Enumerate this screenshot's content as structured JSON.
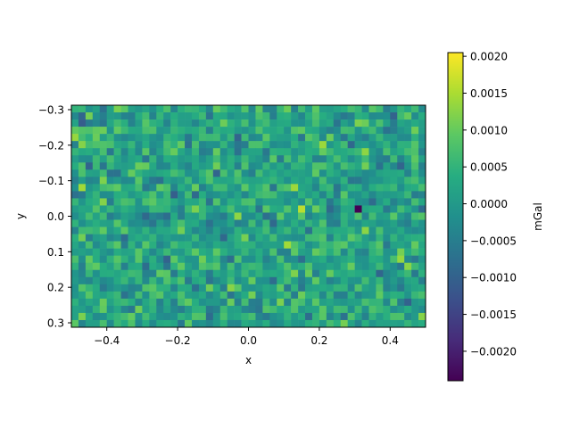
{
  "chart_data": {
    "type": "heatmap",
    "title": "",
    "xlabel": "x",
    "ylabel": "y",
    "xlim": [
      -0.5,
      0.5
    ],
    "ylim": [
      0.3125,
      -0.3125
    ],
    "y_inverted": true,
    "grid": false,
    "x_ticks": [
      -0.4,
      -0.2,
      0.0,
      0.2,
      0.4
    ],
    "x_tick_labels": [
      "−0.4",
      "−0.2",
      "0.0",
      "0.2",
      "0.4"
    ],
    "y_ticks": [
      -0.3,
      -0.2,
      -0.1,
      0.0,
      0.1,
      0.2,
      0.3
    ],
    "y_tick_labels": [
      "−0.3",
      "−0.2",
      "−0.1",
      "0.0",
      "0.1",
      "0.2",
      "0.3"
    ],
    "grid_shape": {
      "cols": 50,
      "rows": 31
    },
    "value_range": [
      -0.0024,
      0.00205
    ],
    "colormap": "viridis",
    "colormap_stops": [
      "#440154",
      "#472c7a",
      "#3b518b",
      "#2c718e",
      "#21908d",
      "#27ad81",
      "#5cc863",
      "#aadc32",
      "#fde725"
    ],
    "notable_cells": [
      {
        "x": 0.31,
        "y": -0.015,
        "value": -0.0024
      },
      {
        "x": 0.15,
        "y": -0.03,
        "value": 0.0016
      },
      {
        "x": -0.22,
        "y": 0.0,
        "value": 0.0013
      }
    ],
    "colorbar": {
      "label": "mGal",
      "ticks": [
        0.002,
        0.0015,
        0.001,
        0.0005,
        0.0,
        -0.0005,
        -0.001,
        -0.0015,
        -0.002
      ],
      "tick_labels": [
        "0.0020",
        "0.0015",
        "0.0010",
        "0.0005",
        "0.0000",
        "−0.0005",
        "−0.0010",
        "−0.0015",
        "−0.0020"
      ]
    }
  }
}
